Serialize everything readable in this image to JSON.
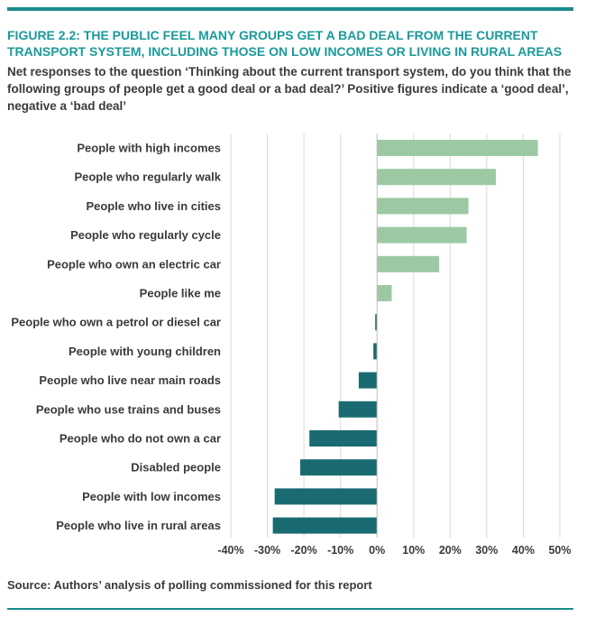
{
  "figure": {
    "title": "FIGURE 2.2: THE PUBLIC FEEL MANY GROUPS GET A BAD DEAL FROM THE CURRENT TRANSPORT SYSTEM, INCLUDING THOSE ON LOW INCOMES OR LIVING IN RURAL AREAS",
    "subtitle": "Net responses to the question ‘Thinking about the current transport system, do you think that the following groups of people get a good deal or a bad deal?’ Positive figures indicate a ‘good deal’, negative a ‘bad deal’",
    "source": "Source: Authors’ analysis of polling commissioned for this report"
  },
  "colors": {
    "positive": "#9cc9a3",
    "negative": "#1a6b71",
    "accent": "#1a9a9a",
    "gridline": "#d9d9d9"
  },
  "chart_data": {
    "type": "bar",
    "orientation": "horizontal",
    "categories": [
      "People with high incomes",
      "People who regularly walk",
      "People who live in cities",
      "People who regularly cycle",
      "People who own an electric car",
      "People like me",
      "People who own a petrol or diesel car",
      "People with young children",
      "People who live near main roads",
      "People who use trains and buses",
      "People who do not own a car",
      "Disabled people",
      "People with low incomes",
      "People who live in rural areas"
    ],
    "values": [
      44,
      32.5,
      25,
      24.5,
      17,
      4,
      -0.5,
      -1,
      -5,
      -10.5,
      -18.5,
      -21,
      -28,
      -28.5
    ],
    "xlim": [
      -40,
      50
    ],
    "xticks": [
      -40,
      -30,
      -20,
      -10,
      0,
      10,
      20,
      30,
      40,
      50
    ],
    "xtick_labels": [
      "-40%",
      "-30%",
      "-20%",
      "-10%",
      "0%",
      "10%",
      "20%",
      "30%",
      "40%",
      "50%"
    ],
    "grid": "vertical",
    "title": "",
    "xlabel": "",
    "ylabel": ""
  }
}
